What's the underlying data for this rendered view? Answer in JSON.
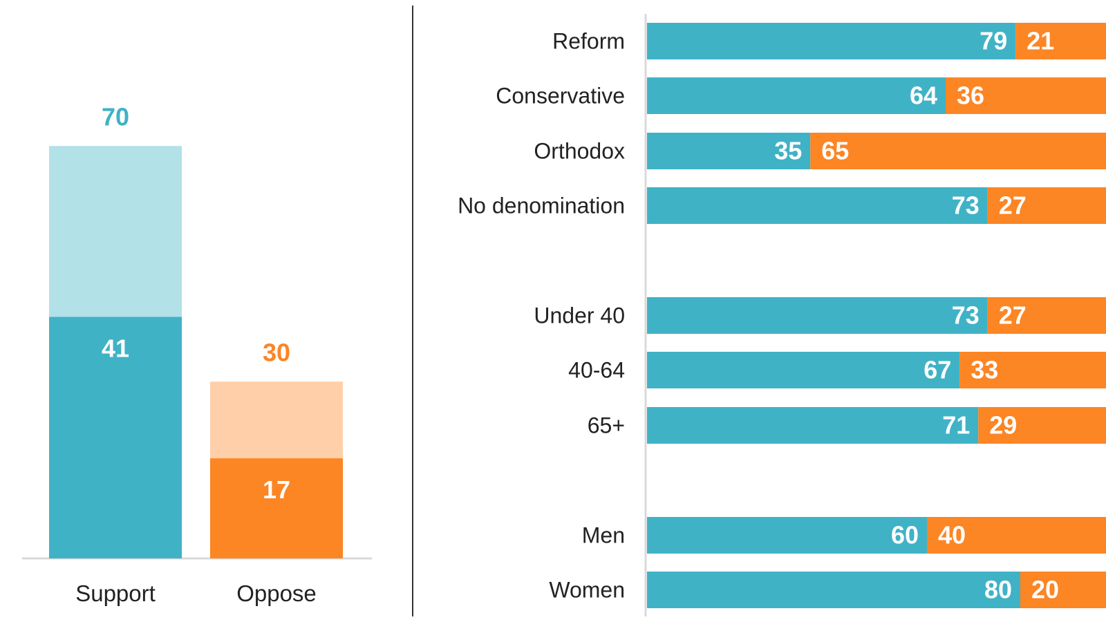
{
  "colors": {
    "support_dark": "#40b2c6",
    "support_light": "#b2e1e7",
    "oppose_dark": "#fc8524",
    "oppose_light": "#fecfa8",
    "label_text": "#222222",
    "value_text_inside": "#ffffff",
    "axis_line": "#d9d9d9",
    "divider": "#333333"
  },
  "chart_data": [
    {
      "type": "bar",
      "stacked": true,
      "categories": [
        "Support",
        "Oppose"
      ],
      "series": [
        {
          "values": [
            41,
            17
          ]
        },
        {
          "values": [
            29,
            13
          ]
        }
      ],
      "totals": [
        70,
        30
      ],
      "ylim": [
        0,
        80
      ],
      "grid": false,
      "legend": "none"
    },
    {
      "type": "bar",
      "orientation": "horizontal",
      "stacked": true,
      "groups": [
        {
          "rows": [
            "Reform",
            "Conservative",
            "Orthodox",
            "No denomination"
          ]
        },
        {
          "rows": [
            "Under 40",
            "40-64",
            "65+"
          ]
        },
        {
          "rows": [
            "Men",
            "Women"
          ]
        }
      ],
      "categories": [
        "Reform",
        "Conservative",
        "Orthodox",
        "No denomination",
        "Under 40",
        "40-64",
        "65+",
        "Men",
        "Women"
      ],
      "series": [
        {
          "values": [
            79,
            64,
            35,
            73,
            73,
            67,
            71,
            60,
            80
          ]
        },
        {
          "values": [
            21,
            36,
            65,
            27,
            27,
            33,
            29,
            40,
            20
          ]
        }
      ],
      "xlim": [
        0,
        100
      ],
      "grid": false,
      "legend": "none"
    }
  ]
}
